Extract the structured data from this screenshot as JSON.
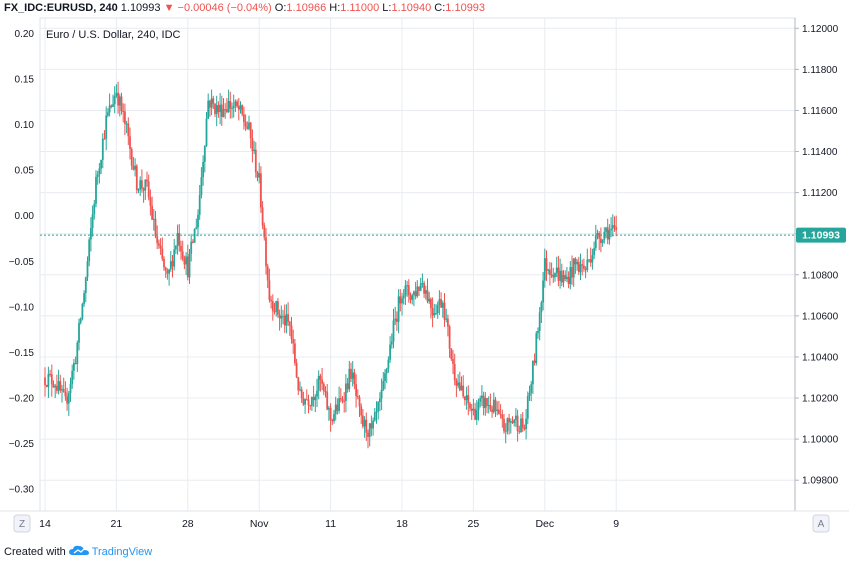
{
  "header": {
    "symbol": "FX_IDC:EURUSD, 240",
    "last": "1.10993",
    "change": "▼ −0.00046 (−0.04%)",
    "o_label": "O:",
    "o_value": "1.10966",
    "h_label": "H:",
    "h_value": "1.11000",
    "l_label": "L:",
    "l_value": "1.10940",
    "c_label": "C:",
    "c_value": "1.10993"
  },
  "legend_title": "Euro / U.S. Dollar, 240, IDC",
  "price_tag": "1.10993",
  "corner_left": "Z",
  "corner_right": "A",
  "footer": {
    "created_with": "Created with",
    "brand": "TradingView"
  },
  "colors": {
    "up": "#26a69a",
    "down": "#ef5350",
    "grid": "#e8ecf0",
    "axis_text": "#131722",
    "price_line": "#26a69a"
  },
  "chart_data": {
    "type": "candlestick",
    "title": "Euro / U.S. Dollar, 240, IDC",
    "xlabel": "",
    "ylabel": "",
    "x_ticks": [
      "14",
      "21",
      "28",
      "Nov",
      "11",
      "18",
      "25",
      "Dec",
      "9"
    ],
    "y_right_ticks": [
      "1.12000",
      "1.11800",
      "1.11600",
      "1.11400",
      "1.11200",
      "1.11000",
      "1.10800",
      "1.10600",
      "1.10400",
      "1.10200",
      "1.10000",
      "1.09800"
    ],
    "y_left_ticks": [
      "0.20",
      "0.15",
      "0.10",
      "0.05",
      "0.00",
      "−0.05",
      "−0.10",
      "−0.15",
      "−0.20",
      "−0.25",
      "−0.30"
    ],
    "ylim": [
      1.0965,
      1.1205
    ],
    "left_ylim": [
      -0.324,
      0.217
    ],
    "last_price": 1.10993,
    "grid": true,
    "period_hours": 4,
    "start_date": "2019-10-14",
    "close_path_days": [
      [
        0.0,
        1.103
      ],
      [
        1.0,
        1.1028
      ],
      [
        2.0,
        1.1017
      ],
      [
        3.0,
        1.104
      ],
      [
        4.0,
        1.1078
      ],
      [
        5.0,
        1.1125
      ],
      [
        6.0,
        1.1155
      ],
      [
        7.0,
        1.117
      ],
      [
        8.0,
        1.115
      ],
      [
        9.0,
        1.1125
      ],
      [
        10.0,
        1.1122
      ],
      [
        11.0,
        1.1095
      ],
      [
        12.0,
        1.1077
      ],
      [
        13.0,
        1.11
      ],
      [
        14.0,
        1.1083
      ],
      [
        15.0,
        1.111
      ],
      [
        16.0,
        1.1165
      ],
      [
        17.0,
        1.116
      ],
      [
        18.0,
        1.1163
      ],
      [
        19.0,
        1.116
      ],
      [
        20.0,
        1.115
      ],
      [
        21.0,
        1.1125
      ],
      [
        22.0,
        1.107
      ],
      [
        23.0,
        1.106
      ],
      [
        24.0,
        1.1055
      ],
      [
        25.0,
        1.102
      ],
      [
        26.0,
        1.102
      ],
      [
        27.0,
        1.1028
      ],
      [
        28.0,
        1.101
      ],
      [
        29.0,
        1.1018
      ],
      [
        30.0,
        1.1033
      ],
      [
        31.0,
        1.1008
      ],
      [
        32.0,
        1.1003
      ],
      [
        33.0,
        1.102
      ],
      [
        34.0,
        1.105
      ],
      [
        35.0,
        1.1073
      ],
      [
        36.0,
        1.107
      ],
      [
        37.0,
        1.1077
      ],
      [
        38.0,
        1.1063
      ],
      [
        39.0,
        1.1068
      ],
      [
        40.0,
        1.1035
      ],
      [
        41.0,
        1.102
      ],
      [
        42.0,
        1.1013
      ],
      [
        43.0,
        1.1018
      ],
      [
        44.0,
        1.1015
      ],
      [
        45.0,
        1.1005
      ],
      [
        46.0,
        1.101
      ],
      [
        47.0,
        1.1005
      ],
      [
        48.0,
        1.104
      ],
      [
        49.0,
        1.1085
      ],
      [
        50.0,
        1.1082
      ],
      [
        51.0,
        1.1077
      ],
      [
        52.0,
        1.1085
      ],
      [
        53.0,
        1.1083
      ],
      [
        54.0,
        1.1097
      ],
      [
        55.0,
        1.1102
      ],
      [
        56.0,
        1.11
      ]
    ]
  }
}
